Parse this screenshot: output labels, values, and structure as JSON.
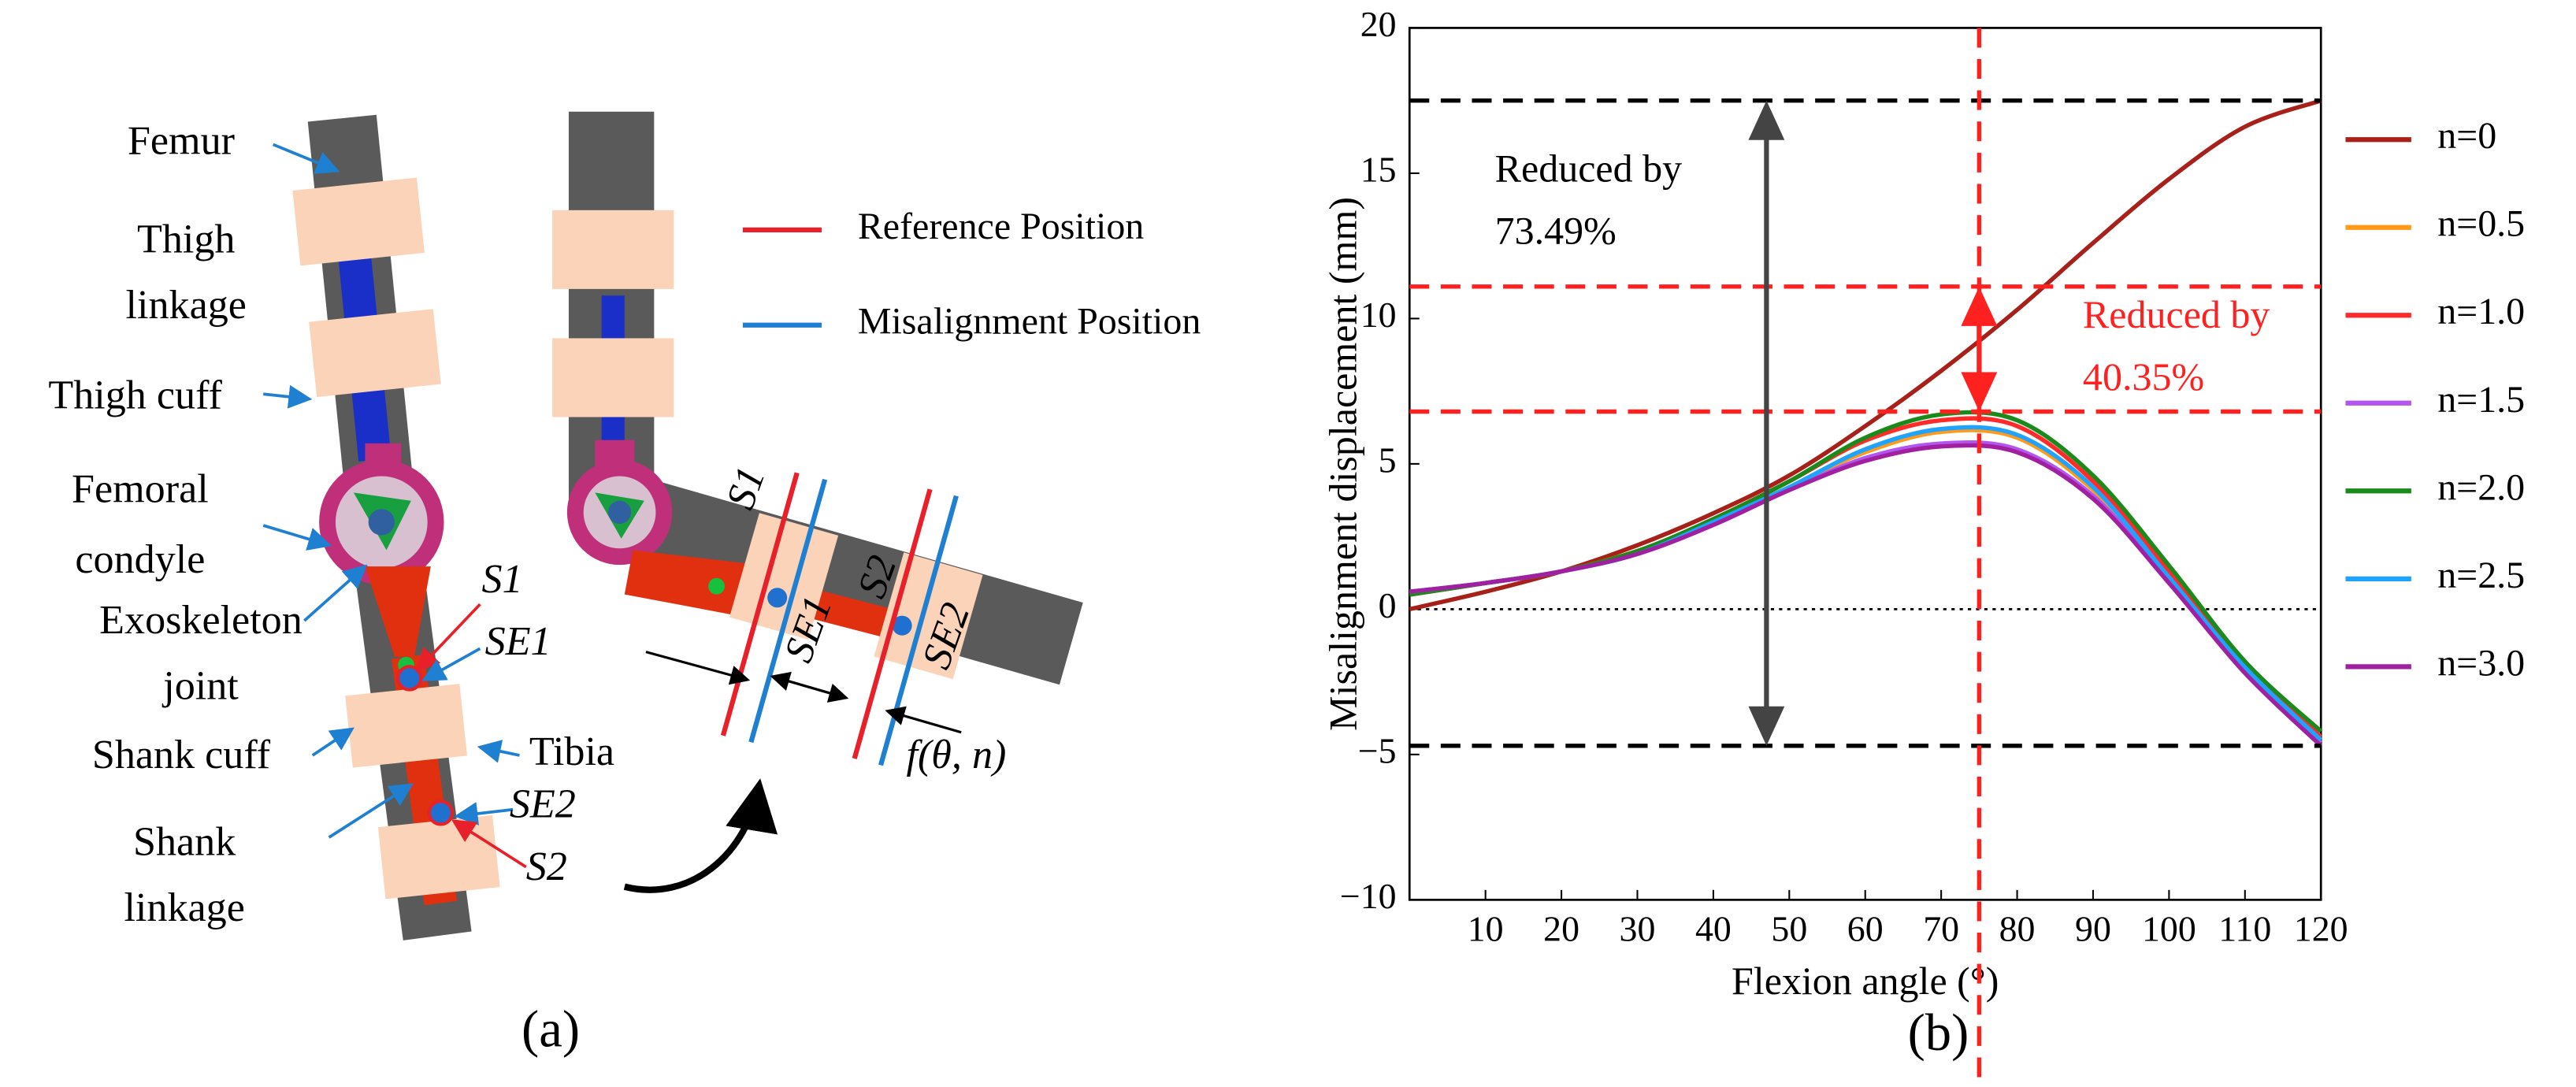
{
  "diagram": {
    "labels": [
      {
        "lines": [
          "Femur"
        ]
      },
      {
        "lines": [
          "Thigh",
          "linkage"
        ]
      },
      {
        "lines": [
          "Thigh cuff"
        ]
      },
      {
        "lines": [
          "Femoral",
          "condyle"
        ]
      },
      {
        "lines": [
          "Exoskeleton",
          "joint"
        ]
      },
      {
        "lines": [
          "S1"
        ]
      },
      {
        "lines": [
          "SE1"
        ]
      },
      {
        "lines": [
          "Shank cuff"
        ]
      },
      {
        "lines": [
          "Tibia"
        ]
      },
      {
        "lines": [
          "Shank",
          "linkage"
        ]
      },
      {
        "lines": [
          "SE2"
        ]
      },
      {
        "lines": [
          "S2"
        ]
      },
      {
        "lines": [
          "S1"
        ]
      },
      {
        "lines": [
          "SE1"
        ]
      },
      {
        "lines": [
          "S2"
        ]
      },
      {
        "lines": [
          "SE2"
        ]
      },
      {
        "lines": [
          "f(θ, n)"
        ]
      }
    ],
    "legend": [
      {
        "name": "Reference Position",
        "color": "#e8202a"
      },
      {
        "name": "Misalignment Position",
        "color": "#1f7fd0"
      }
    ],
    "panel_label": "(a)"
  },
  "chart_data": {
    "type": "line",
    "panel_label": "(b)",
    "x_label": "Flexion angle (°)",
    "y_label": "Misalignment displacement (mm)",
    "x": [
      0,
      10,
      20,
      30,
      40,
      50,
      60,
      70,
      80,
      90,
      100,
      110,
      120
    ],
    "series": [
      {
        "name": "n=0",
        "color": "#a8201a",
        "values": [
          0,
          0.6,
          1.3,
          2.2,
          3.3,
          4.6,
          6.3,
          8.2,
          10.3,
          12.6,
          14.8,
          16.6,
          17.5
        ]
      },
      {
        "name": "n=0.5",
        "color": "#ff9a1a",
        "values": [
          0.5,
          0.9,
          1.3,
          2.0,
          3.0,
          4.2,
          5.4,
          6.1,
          5.9,
          4.1,
          1.2,
          -2.0,
          -4.5
        ]
      },
      {
        "name": "n=1.0",
        "color": "#ff2a2a",
        "values": [
          0.5,
          0.9,
          1.3,
          2.0,
          3.1,
          4.4,
          5.8,
          6.5,
          6.3,
          4.4,
          1.3,
          -1.9,
          -4.4
        ]
      },
      {
        "name": "n=1.5",
        "color": "#b455f0",
        "values": [
          0.6,
          0.9,
          1.3,
          1.9,
          2.9,
          4.1,
          5.2,
          5.7,
          5.5,
          3.9,
          1.0,
          -2.1,
          -4.6
        ]
      },
      {
        "name": "n=2.0",
        "color": "#1a8a1a",
        "values": [
          0.5,
          0.9,
          1.3,
          2.0,
          3.1,
          4.4,
          5.9,
          6.7,
          6.5,
          4.6,
          1.5,
          -1.8,
          -4.2
        ]
      },
      {
        "name": "n=2.5",
        "color": "#1fa3ff",
        "values": [
          0.6,
          0.9,
          1.3,
          1.9,
          3.0,
          4.2,
          5.5,
          6.2,
          6.0,
          4.2,
          1.1,
          -2.0,
          -4.5
        ]
      },
      {
        "name": "n=3.0",
        "color": "#a020a0",
        "values": [
          0.6,
          0.9,
          1.3,
          1.9,
          2.9,
          4.1,
          5.1,
          5.6,
          5.4,
          3.8,
          0.9,
          -2.2,
          -4.7
        ]
      }
    ],
    "xlim": [
      0,
      120
    ],
    "ylim": [
      -10,
      20
    ],
    "xticks": [
      10,
      20,
      30,
      40,
      50,
      60,
      70,
      80,
      90,
      100,
      110,
      120
    ],
    "yticks": [
      {
        "value": -10,
        "label": "−10"
      },
      {
        "value": -5,
        "label": "−5"
      },
      0,
      5,
      10,
      15,
      20
    ],
    "zero_line": true,
    "legend": "right",
    "hlines": [
      {
        "value": 17.5,
        "color": "#000000"
      },
      {
        "value": -4.7,
        "color": "#000000"
      },
      {
        "value": 11.1,
        "color": "#ff2020"
      },
      {
        "value": 6.8,
        "color": "#ff2020"
      }
    ],
    "vline": {
      "value": 75,
      "color": "#ff2020"
    },
    "arrows": [
      {
        "x": 47,
        "from": 17.5,
        "to": -4.7,
        "color": "#444444"
      },
      {
        "x": 75,
        "from": 11.1,
        "to": 6.8,
        "color": "#ff2020"
      }
    ],
    "annotations": [
      {
        "lines": [
          "Reduced by",
          "73.49%"
        ],
        "color": "#000000"
      },
      {
        "lines": [
          "Reduced by",
          "40.35%"
        ],
        "color": "#ff2020"
      }
    ]
  }
}
